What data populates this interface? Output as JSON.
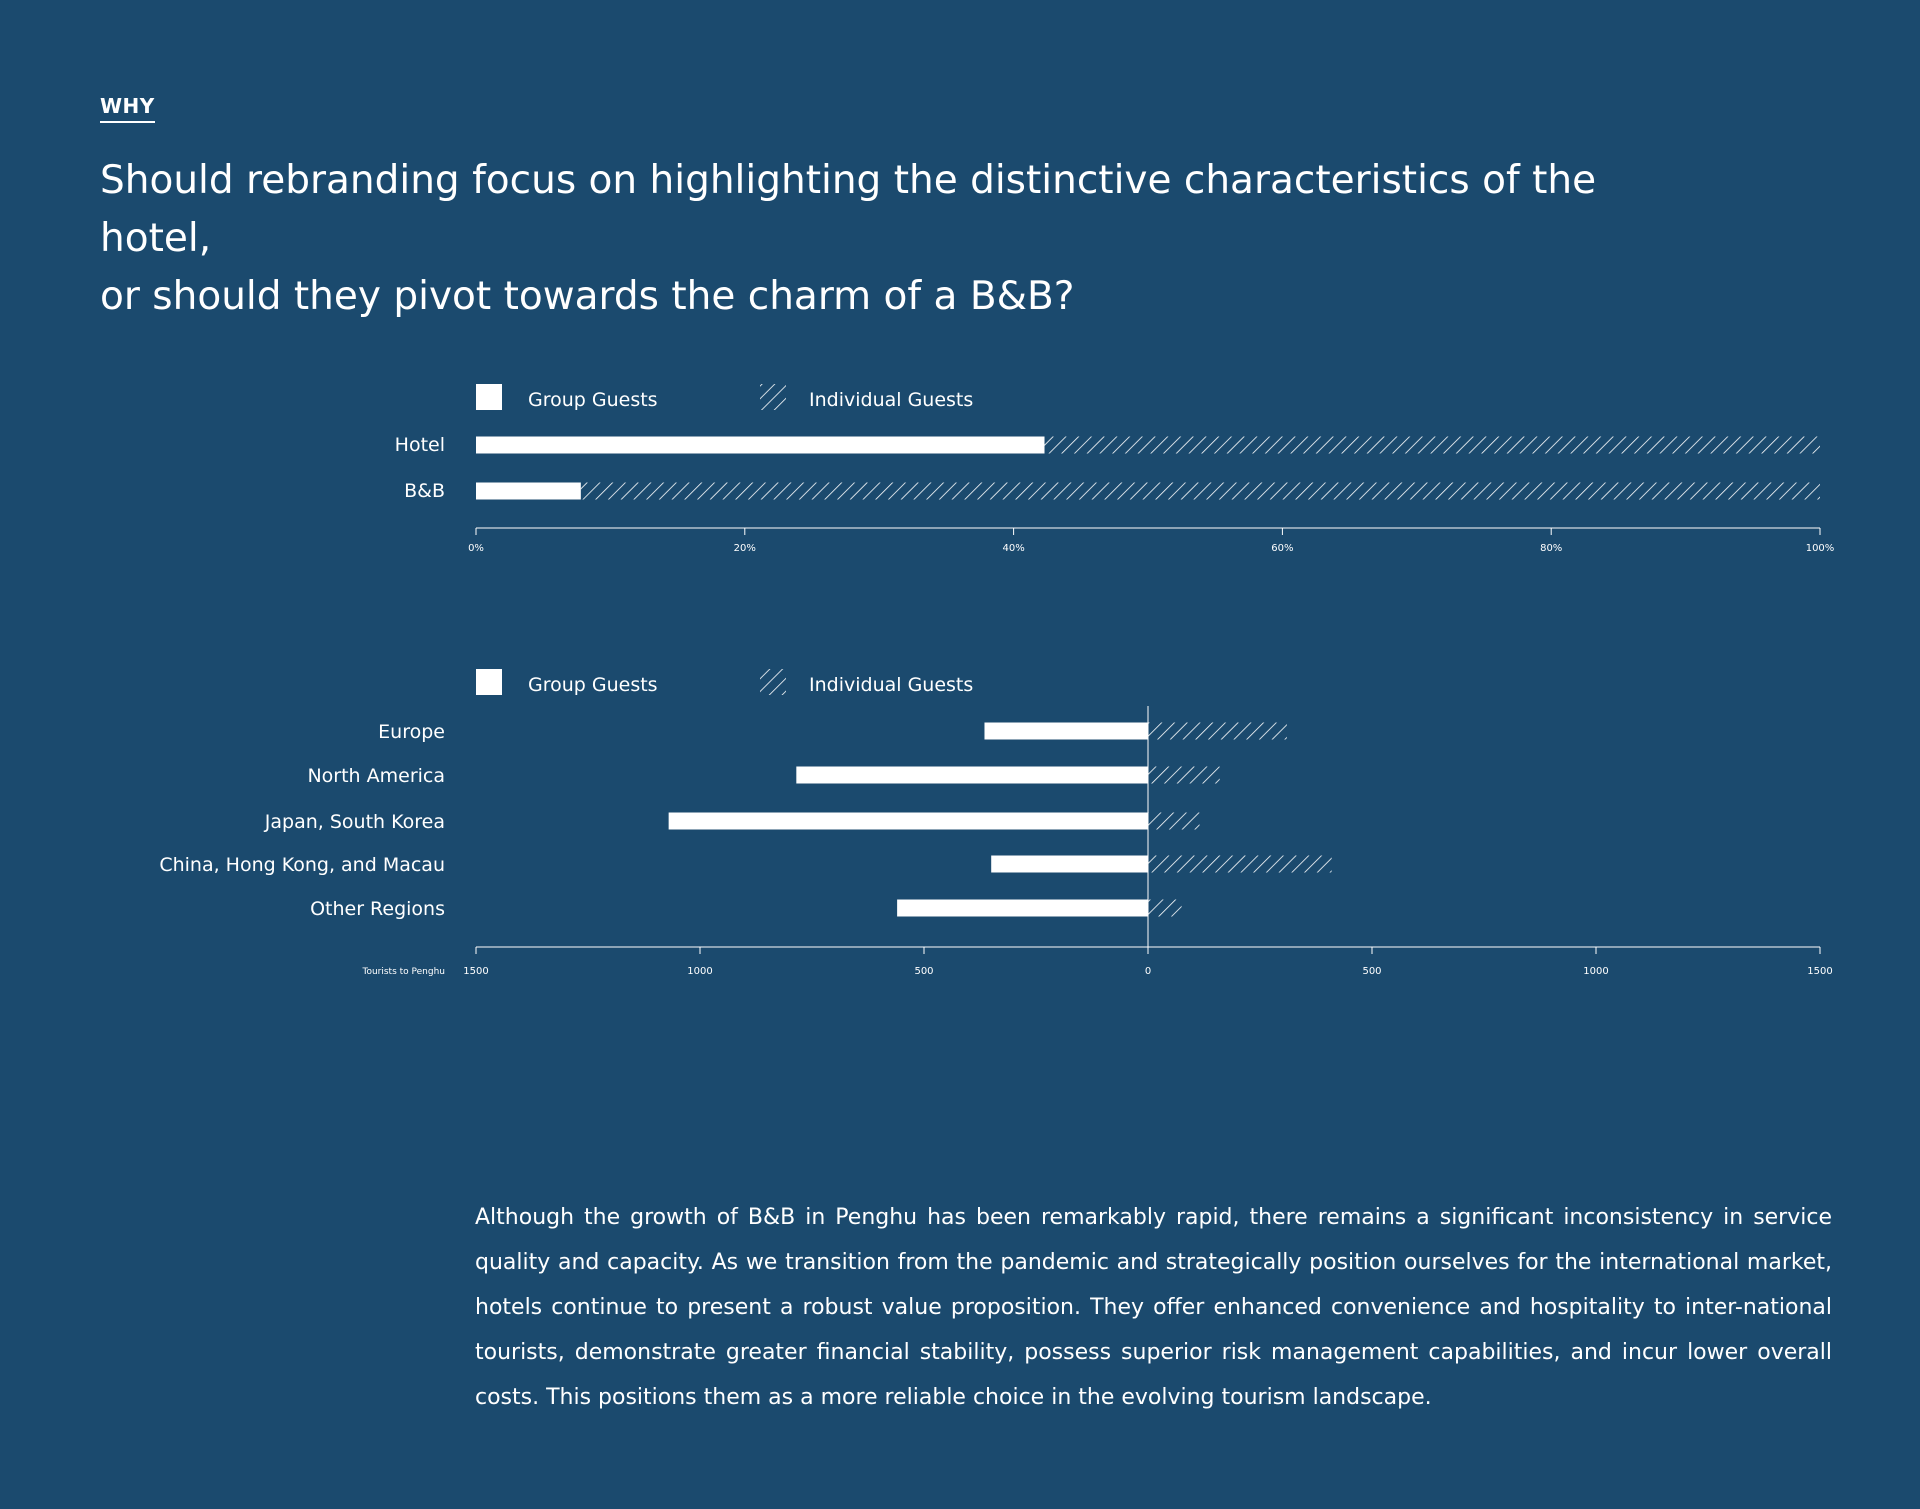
{
  "header": {
    "eyebrow": "WHY",
    "headline_line1": "Should rebranding focus on highlighting the distinctive characteristics of the hotel,",
    "headline_line2": "or should they pivot towards the charm of a B&B?"
  },
  "colors": {
    "background": "#1b4a6e",
    "foreground": "#ffffff"
  },
  "chart_data": [
    {
      "type": "bar",
      "orientation": "horizontal",
      "stacked": "percent",
      "legend": [
        "Group Guests",
        "Individual Guests"
      ],
      "categories": [
        "Hotel",
        "B&B"
      ],
      "series": [
        {
          "name": "Group Guests",
          "values": [
            42.3,
            7.8
          ],
          "style": "solid"
        },
        {
          "name": "Individual Guests",
          "values": [
            57.7,
            92.2
          ],
          "style": "hatched"
        }
      ],
      "xlim": [
        0,
        100
      ],
      "xticks": [
        "0%",
        "20%",
        "40%",
        "60%",
        "80%",
        "100%"
      ],
      "legend_position": "top-left"
    },
    {
      "type": "bar",
      "orientation": "horizontal",
      "layout": "diverging",
      "legend": [
        "Group Guests",
        "Individual Guests"
      ],
      "categories": [
        "Europe",
        "North America",
        "Japan, South Korea",
        "China, Hong Kong, and Macau",
        "Other Regions"
      ],
      "series": [
        {
          "name": "Group Guests",
          "values": [
            365,
            785,
            1070,
            350,
            560
          ],
          "style": "solid",
          "side": "left"
        },
        {
          "name": "Individual Guests",
          "values": [
            310,
            160,
            115,
            410,
            75
          ],
          "style": "hatched",
          "side": "right"
        }
      ],
      "xlim": [
        -1500,
        1500
      ],
      "xticks": [
        "1500",
        "1000",
        "500",
        "0",
        "500",
        "1000",
        "1500"
      ],
      "xlabel": "Tourists to Penghu",
      "legend_position": "top-left"
    }
  ],
  "body_text": "Although the growth of B&B in Penghu has been remarkably rapid, there remains a significant inconsistency in service quality and capacity. As we transition from the pandemic and strategically position ourselves for the international market, hotels continue to present a robust value proposition. They offer enhanced convenience and hospitality to inter-national tourists, demonstrate greater financial stability, possess superior risk management capabilities, and incur lower overall costs. This positions them as a more reliable choice in the evolving tourism landscape."
}
